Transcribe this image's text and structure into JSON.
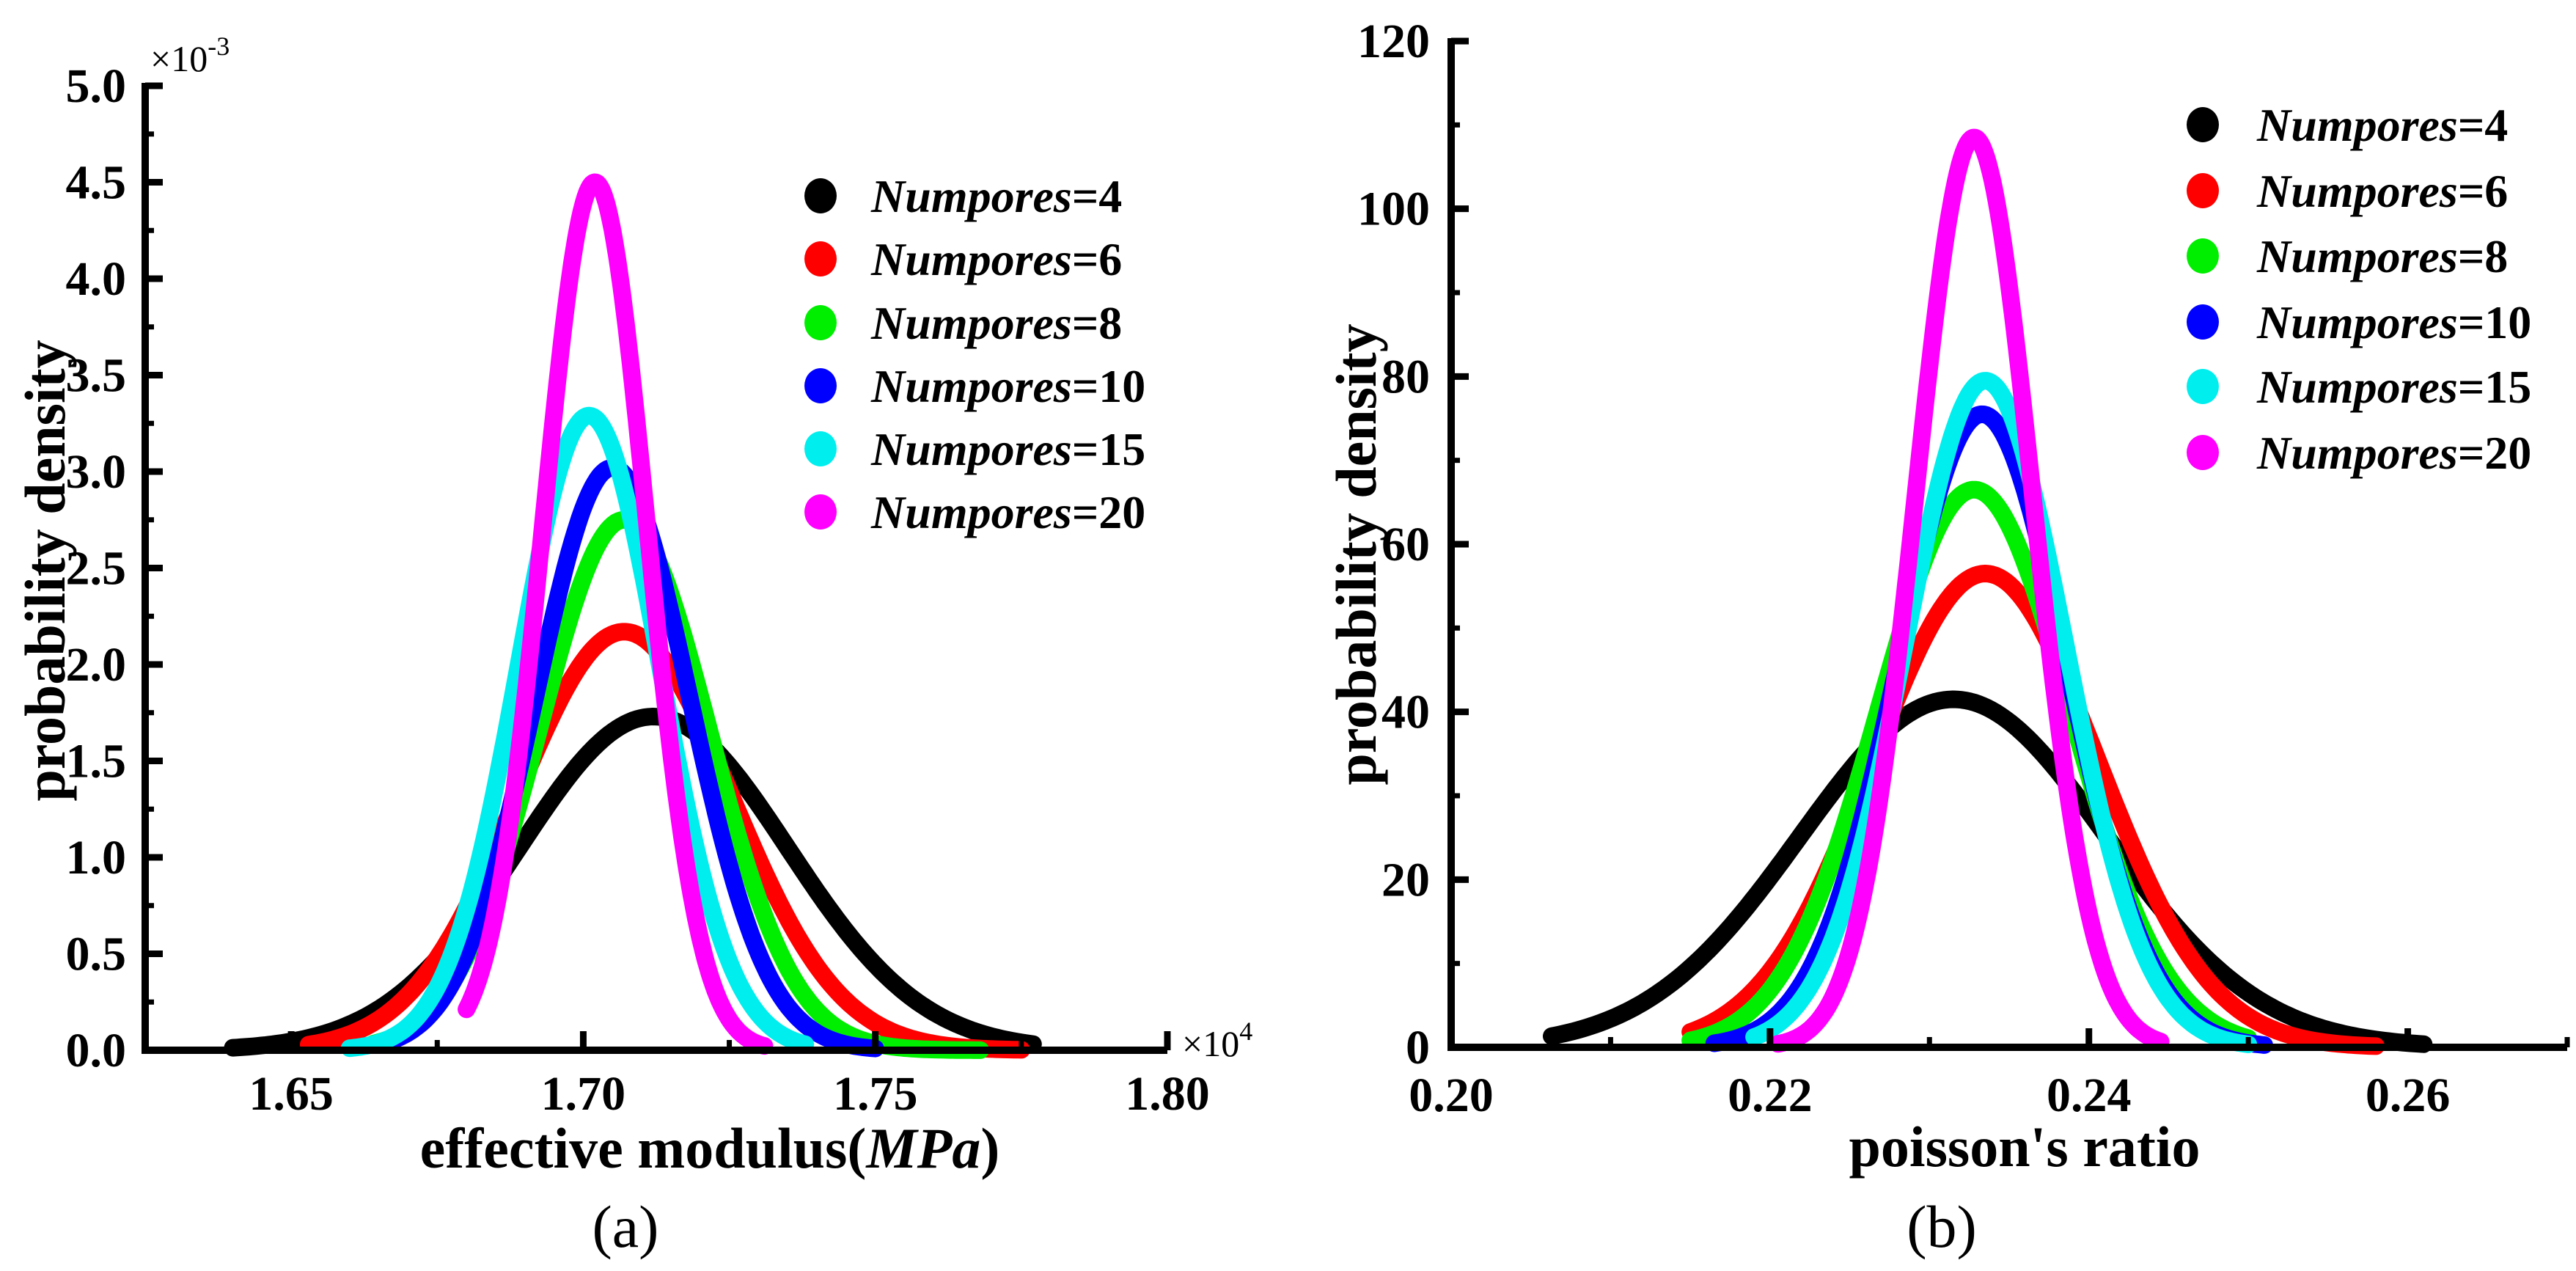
{
  "chart_data": [
    {
      "type": "line",
      "panel_label": "(a)",
      "xlabel": {
        "prefix": "effective modulus(",
        "italic": "MPa",
        "suffix": ")"
      },
      "ylabel": "probability density",
      "x_multiplier": {
        "base": "×10",
        "exp": "4"
      },
      "y_multiplier": {
        "base": "×10",
        "exp": "-3"
      },
      "xlim": [
        1.625,
        1.8
      ],
      "ylim": [
        0,
        5.0
      ],
      "xticks": [
        "1.65",
        "1.70",
        "1.75",
        "1.80"
      ],
      "yticks": [
        "0.0",
        "0.5",
        "1.0",
        "1.5",
        "2.0",
        "2.5",
        "3.0",
        "3.5",
        "4.0",
        "4.5",
        "5.0"
      ],
      "legend_position": "top-right",
      "series": [
        {
          "name": "Numpores",
          "suffix": "=4",
          "color": "#000000",
          "mean": 1.712,
          "std": 0.023,
          "peak": 1.73,
          "x_range": [
            1.64,
            1.777
          ]
        },
        {
          "name": "Numpores",
          "suffix": "=6",
          "color": "#ff0000",
          "mean": 1.707,
          "std": 0.0184,
          "peak": 2.17,
          "x_range": [
            1.653,
            1.775
          ]
        },
        {
          "name": "Numpores",
          "suffix": "=8",
          "color": "#00ee00",
          "mean": 1.707,
          "std": 0.0145,
          "peak": 2.75,
          "x_range": [
            1.664,
            1.768
          ]
        },
        {
          "name": "Numpores",
          "suffix": "=10",
          "color": "#0000ff",
          "mean": 1.705,
          "std": 0.0132,
          "peak": 3.02,
          "x_range": [
            1.665,
            1.75
          ]
        },
        {
          "name": "Numpores",
          "suffix": "=15",
          "color": "#00eeee",
          "mean": 1.701,
          "std": 0.0121,
          "peak": 3.29,
          "x_range": [
            1.66,
            1.738
          ]
        },
        {
          "name": "Numpores",
          "suffix": "=20",
          "color": "#ff00ff",
          "mean": 1.702,
          "std": 0.0089,
          "peak": 4.5,
          "x_range": [
            1.68,
            1.731
          ]
        }
      ]
    },
    {
      "type": "line",
      "panel_label": "(b)",
      "xlabel": {
        "prefix": "poisson's ratio",
        "italic": "",
        "suffix": ""
      },
      "ylabel": "probability density",
      "xlim": [
        0.2,
        0.27
      ],
      "ylim": [
        0,
        120
      ],
      "xticks": [
        "0.20",
        "0.22",
        "0.24",
        "0.26"
      ],
      "yticks": [
        "0",
        "20",
        "40",
        "60",
        "80",
        "100",
        "120"
      ],
      "legend_position": "top-right",
      "series": [
        {
          "name": "Numpores",
          "suffix": "=4",
          "color": "#000000",
          "mean": 0.2315,
          "std": 0.00961,
          "peak": 41.5,
          "x_range": [
            0.2063,
            0.261
          ]
        },
        {
          "name": "Numpores",
          "suffix": "=6",
          "color": "#ff0000",
          "mean": 0.2335,
          "std": 0.00706,
          "peak": 56.5,
          "x_range": [
            0.215,
            0.258
          ]
        },
        {
          "name": "Numpores",
          "suffix": "=8",
          "color": "#00ee00",
          "mean": 0.2328,
          "std": 0.006,
          "peak": 66.5,
          "x_range": [
            0.215,
            0.25
          ]
        },
        {
          "name": "Numpores",
          "suffix": "=10",
          "color": "#0000ff",
          "mean": 0.2333,
          "std": 0.00528,
          "peak": 75.5,
          "x_range": [
            0.2165,
            0.251
          ]
        },
        {
          "name": "Numpores",
          "suffix": "=15",
          "color": "#00eeee",
          "mean": 0.2335,
          "std": 0.00502,
          "peak": 79.5,
          "x_range": [
            0.219,
            0.25
          ]
        },
        {
          "name": "Numpores",
          "suffix": "=20",
          "color": "#ff00ff",
          "mean": 0.2328,
          "std": 0.00368,
          "peak": 108.5,
          "x_range": [
            0.2205,
            0.2445
          ]
        }
      ]
    }
  ]
}
